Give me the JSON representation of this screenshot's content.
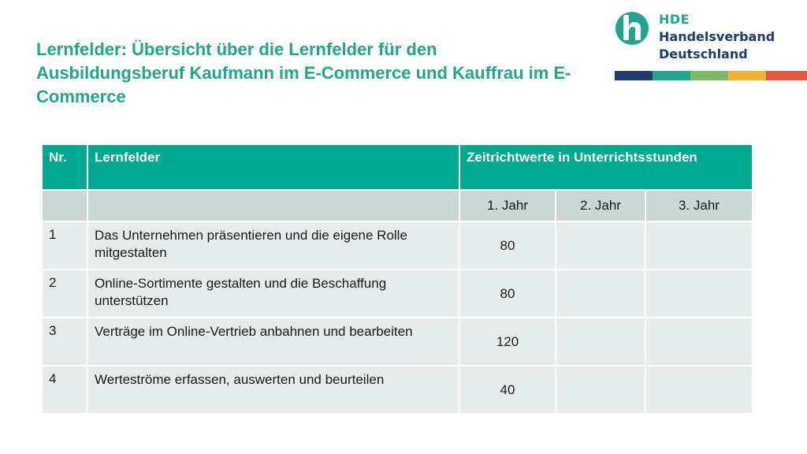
{
  "title": "Lernfelder: Übersicht über die Lernfelder für den Ausbildungsberuf Kaufmann im E-Commerce und Kauffrau im E-Commerce",
  "logo": {
    "line1": "HDE",
    "line2": "Handelsverband",
    "line3": "Deutschland",
    "icon": "hde-logo-icon",
    "colors": [
      "#1f3c6c",
      "#21a68d",
      "#7dba6f",
      "#f2b134",
      "#e4573b"
    ]
  },
  "table": {
    "headers": [
      "Nr.",
      "Lernfelder",
      "Zeitrichtwerte in Unterrichtsstunden"
    ],
    "years": [
      "1. Jahr",
      "2. Jahr",
      "3. Jahr"
    ],
    "rows": [
      {
        "nr": "1",
        "name": "Das Unternehmen präsentieren und die eigene Rolle mitgestalten",
        "y1": "80",
        "y2": "",
        "y3": ""
      },
      {
        "nr": "2",
        "name": "Online-Sortimente gestalten und die Beschaffung unterstützen",
        "y1": "80",
        "y2": "",
        "y3": ""
      },
      {
        "nr": "3",
        "name": "Verträge im Online-Vertrieb anbahnen und bearbeiten",
        "y1": "120",
        "y2": "",
        "y3": ""
      },
      {
        "nr": "4",
        "name": "Werteströme erfassen, auswerten und beurteilen",
        "y1": "40",
        "y2": "",
        "y3": ""
      }
    ]
  }
}
